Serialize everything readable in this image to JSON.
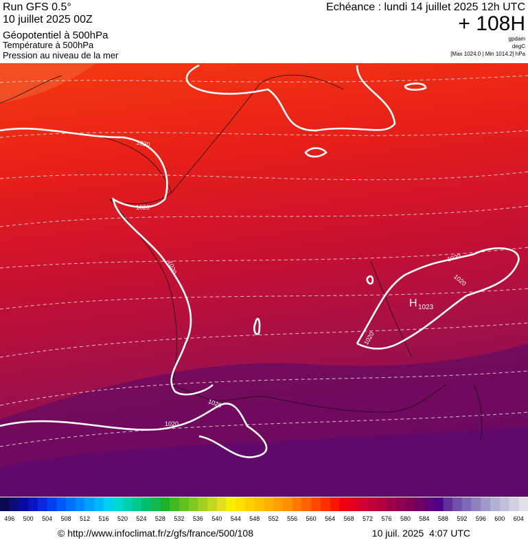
{
  "header": {
    "model": "Run GFS 0.5°",
    "run": "10 juillet 2025 00Z",
    "field_main": "Géopotentiel à 500hPa",
    "field_2": "Température à 500hPa",
    "field_3": "Pression au niveau de la mer",
    "valid": "Echéance : lundi 14 juillet 2025 12h UTC",
    "lead": "+ 108H",
    "unit_1": "gpdam",
    "unit_2": "degC",
    "range": "[Max 1024.0 | Min 1014.2] hPa"
  },
  "map": {
    "contour_labels": [
      "1020",
      "1020",
      "1020",
      "1020",
      "1020",
      "1020",
      "1020",
      "1020"
    ],
    "high_symbol": "H",
    "high_value": "1023"
  },
  "legend": {
    "labels": [
      496,
      500,
      504,
      508,
      512,
      516,
      520,
      524,
      528,
      532,
      536,
      540,
      544,
      548,
      552,
      556,
      560,
      564,
      568,
      572,
      576,
      580,
      584,
      588,
      592,
      596,
      600,
      604
    ],
    "colors": [
      "#0a0a50",
      "#0c0c78",
      "#0a0aa0",
      "#0a14c0",
      "#0a28e0",
      "#0040f0",
      "#0058f8",
      "#0070ff",
      "#0088ff",
      "#00a0ff",
      "#00b8ff",
      "#00d0f0",
      "#00d8d0",
      "#00d0b0",
      "#00c890",
      "#00c070",
      "#10b850",
      "#20b030",
      "#40b820",
      "#60c020",
      "#80c820",
      "#a0d020",
      "#c0d820",
      "#e0e020",
      "#f8f000",
      "#ffe000",
      "#ffd000",
      "#ffc000",
      "#ffb000",
      "#ffa000",
      "#ff9000",
      "#ff7800",
      "#ff6000",
      "#ff4800",
      "#ff3000",
      "#f81800",
      "#f00010",
      "#e00020",
      "#d00030",
      "#c00038",
      "#b00040",
      "#a00048",
      "#900050",
      "#800058",
      "#700068",
      "#600078",
      "#500088",
      "#603098",
      "#7050a8",
      "#8068b8",
      "#9080c0",
      "#a098c8",
      "#b0b0d0",
      "#c0c0d8",
      "#d0d0e0",
      "#e0e0e8"
    ]
  },
  "footer": {
    "source": "© http://www.infoclimat.fr/z/gfs/france/500/108",
    "generated": "10 juil. 2025  4:07 UTC"
  }
}
